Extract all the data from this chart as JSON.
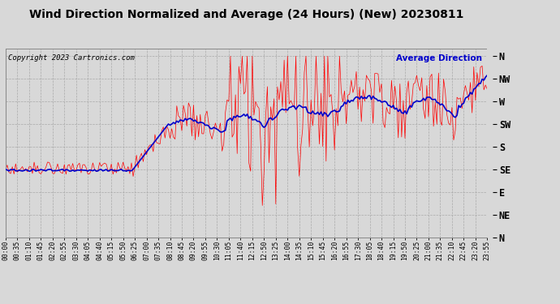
{
  "title": "Wind Direction Normalized and Average (24 Hours) (New) 20230811",
  "copyright": "Copyright 2023 Cartronics.com",
  "legend_label": "Average Direction",
  "raw_color": "#ff0000",
  "avg_color": "#0000cc",
  "bg_color": "#d8d8d8",
  "grid_color": "#aaaaaa",
  "ytick_labels": [
    "N",
    "NW",
    "W",
    "SW",
    "S",
    "SE",
    "E",
    "NE",
    "N"
  ],
  "ytick_values": [
    360,
    315,
    270,
    225,
    180,
    135,
    90,
    45,
    0
  ],
  "ylim": [
    0,
    375
  ],
  "title_fontsize": 10,
  "copyright_fontsize": 6.5,
  "tick_fontsize": 5.8,
  "ytick_fontsize": 8.5
}
